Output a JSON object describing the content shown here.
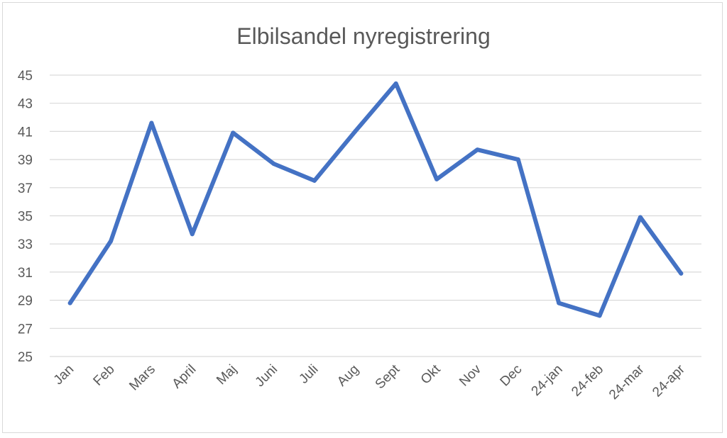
{
  "chart_data": {
    "type": "line",
    "title": "Elbilsandel nyregistrering",
    "xlabel": "",
    "ylabel": "",
    "categories": [
      "Jan",
      "Feb",
      "Mars",
      "April",
      "Maj",
      "Juni",
      "Juli",
      "Aug",
      "Sept",
      "Okt",
      "Nov",
      "Dec",
      "24-jan",
      "24-feb",
      "24-mar",
      "24-apr"
    ],
    "series": [
      {
        "name": "Elbilsandel nyregistrering",
        "values": [
          28.8,
          33.2,
          41.6,
          33.7,
          40.9,
          38.7,
          37.5,
          41.0,
          44.4,
          37.6,
          39.7,
          39.0,
          28.8,
          27.9,
          34.9,
          30.9
        ],
        "color": "#4472c4"
      }
    ],
    "ylim": [
      25,
      45
    ],
    "yticks": [
      "25",
      "27",
      "29",
      "31",
      "33",
      "35",
      "37",
      "39",
      "41",
      "43",
      "45"
    ],
    "grid": true,
    "legend": "none"
  }
}
